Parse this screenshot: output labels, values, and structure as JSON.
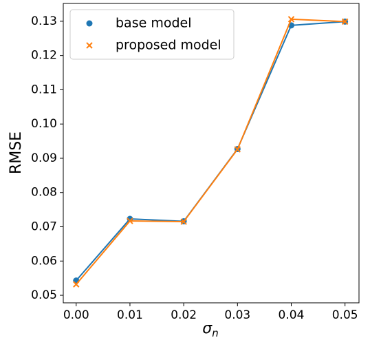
{
  "chart_data": {
    "type": "line",
    "ylabel": "RMSE",
    "xlabel": {
      "symbol": "σ",
      "subscript": "n"
    },
    "x": [
      0.0,
      0.01,
      0.02,
      0.03,
      0.04,
      0.05
    ],
    "series": [
      {
        "name": "base model",
        "color": "#1f77b4",
        "marker": "circle",
        "values": [
          0.0543,
          0.0723,
          0.0716,
          0.0927,
          0.1288,
          0.1299
        ]
      },
      {
        "name": "proposed model",
        "color": "#ff7f0e",
        "marker": "x",
        "values": [
          0.0532,
          0.0717,
          0.0715,
          0.0926,
          0.1306,
          0.1299
        ]
      }
    ],
    "xlim": [
      -0.0024,
      0.0526
    ],
    "ylim": [
      0.0478,
      0.1352
    ],
    "xticks": [
      {
        "value": 0.0,
        "label": "0.00"
      },
      {
        "value": 0.01,
        "label": "0.01"
      },
      {
        "value": 0.02,
        "label": "0.02"
      },
      {
        "value": 0.03,
        "label": "0.03"
      },
      {
        "value": 0.04,
        "label": "0.04"
      },
      {
        "value": 0.05,
        "label": "0.05"
      }
    ],
    "yticks": [
      {
        "value": 0.05,
        "label": "0.05"
      },
      {
        "value": 0.06,
        "label": "0.06"
      },
      {
        "value": 0.07,
        "label": "0.07"
      },
      {
        "value": 0.08,
        "label": "0.08"
      },
      {
        "value": 0.09,
        "label": "0.09"
      },
      {
        "value": 0.1,
        "label": "0.10"
      },
      {
        "value": 0.11,
        "label": "0.11"
      },
      {
        "value": 0.12,
        "label": "0.12"
      },
      {
        "value": 0.13,
        "label": "0.13"
      }
    ],
    "legend": "upper left"
  }
}
